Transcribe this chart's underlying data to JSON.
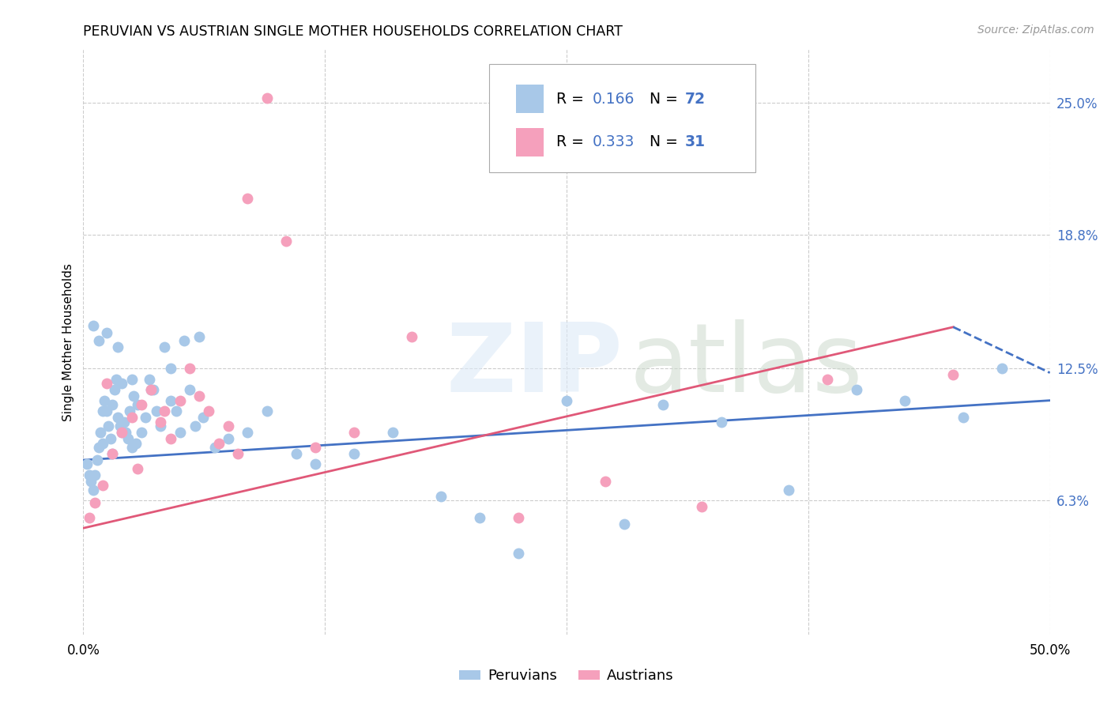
{
  "title": "PERUVIAN VS AUSTRIAN SINGLE MOTHER HOUSEHOLDS CORRELATION CHART",
  "source": "Source: ZipAtlas.com",
  "ylabel": "Single Mother Households",
  "xlim": [
    0.0,
    50.0
  ],
  "ylim": [
    0.0,
    27.5
  ],
  "xtick_positions": [
    0.0,
    12.5,
    25.0,
    37.5,
    50.0
  ],
  "xtick_show": [
    0.0,
    50.0
  ],
  "ytick_values": [
    6.3,
    12.5,
    18.8,
    25.0
  ],
  "ytick_labels": [
    "6.3%",
    "12.5%",
    "18.8%",
    "25.0%"
  ],
  "blue_color": "#a8c8e8",
  "pink_color": "#f5a0bc",
  "line_blue_color": "#4472c4",
  "line_pink_color": "#e05878",
  "legend_text_color": "#4472c4",
  "grid_color": "#cccccc",
  "peruvians_x": [
    0.2,
    0.3,
    0.4,
    0.5,
    0.6,
    0.7,
    0.8,
    0.9,
    1.0,
    1.0,
    1.1,
    1.2,
    1.3,
    1.4,
    1.5,
    1.5,
    1.6,
    1.7,
    1.8,
    1.9,
    2.0,
    2.0,
    2.1,
    2.2,
    2.3,
    2.4,
    2.5,
    2.6,
    2.7,
    2.8,
    3.0,
    3.2,
    3.4,
    3.6,
    3.8,
    4.0,
    4.2,
    4.5,
    4.8,
    5.0,
    5.2,
    5.5,
    5.8,
    6.2,
    6.8,
    7.5,
    8.5,
    9.5,
    11.0,
    12.0,
    14.0,
    16.0,
    18.5,
    20.5,
    22.5,
    25.0,
    28.0,
    30.0,
    33.0,
    36.5,
    40.0,
    42.5,
    45.5,
    47.5,
    0.5,
    0.8,
    1.2,
    1.8,
    2.5,
    3.5,
    4.5,
    6.0
  ],
  "peruvians_y": [
    8.0,
    7.5,
    7.2,
    6.8,
    7.5,
    8.2,
    8.8,
    9.5,
    10.5,
    9.0,
    11.0,
    10.5,
    9.8,
    9.2,
    8.5,
    10.8,
    11.5,
    12.0,
    10.2,
    9.8,
    9.5,
    11.8,
    10.0,
    9.5,
    9.2,
    10.5,
    8.8,
    11.2,
    9.0,
    10.8,
    9.5,
    10.2,
    12.0,
    11.5,
    10.5,
    9.8,
    13.5,
    11.0,
    10.5,
    9.5,
    13.8,
    11.5,
    9.8,
    10.2,
    8.8,
    9.2,
    9.5,
    10.5,
    8.5,
    8.0,
    8.5,
    9.5,
    6.5,
    5.5,
    3.8,
    11.0,
    5.2,
    10.8,
    10.0,
    6.8,
    11.5,
    11.0,
    10.2,
    12.5,
    14.5,
    13.8,
    14.2,
    13.5,
    12.0,
    11.5,
    12.5,
    14.0
  ],
  "austrians_x": [
    0.3,
    0.6,
    1.0,
    1.5,
    2.0,
    2.5,
    3.0,
    3.5,
    4.0,
    4.5,
    5.0,
    5.5,
    6.0,
    6.5,
    7.0,
    7.5,
    8.0,
    8.5,
    9.5,
    10.5,
    12.0,
    14.0,
    17.0,
    22.5,
    27.0,
    32.0,
    38.5,
    45.0,
    1.2,
    2.8,
    4.2
  ],
  "austrians_y": [
    5.5,
    6.2,
    7.0,
    8.5,
    9.5,
    10.2,
    10.8,
    11.5,
    10.0,
    9.2,
    11.0,
    12.5,
    11.2,
    10.5,
    9.0,
    9.8,
    8.5,
    20.5,
    25.2,
    18.5,
    8.8,
    9.5,
    14.0,
    5.5,
    7.2,
    6.0,
    12.0,
    12.2,
    11.8,
    7.8,
    10.5
  ],
  "blue_trend_x": [
    0.0,
    50.0
  ],
  "blue_trend_y": [
    8.2,
    11.0
  ],
  "pink_trend_x": [
    0.0,
    50.0
  ],
  "pink_trend_y": [
    5.0,
    15.5
  ],
  "pink_solid_end_x": 45.0,
  "dashed_end_y": 12.3
}
